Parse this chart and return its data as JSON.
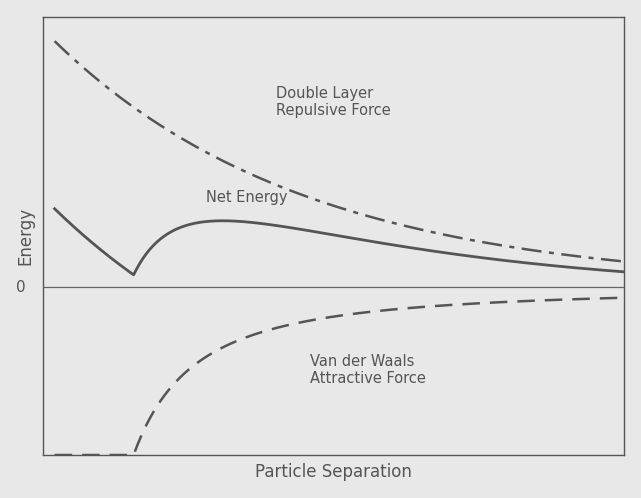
{
  "title": "",
  "xlabel": "Particle Separation",
  "ylabel": "Energy",
  "background_color": "#e8e8e8",
  "line_color": "#555555",
  "zero_line_color": "#666666",
  "xlim": [
    0.0,
    1.0
  ],
  "ylim": [
    -0.65,
    1.05
  ],
  "labels": {
    "double_layer": "Double Layer\nRepulsive Force",
    "net_energy": "Net Energy",
    "van_der_waals": "Van der Waals\nAttractive Force"
  },
  "label_positions": {
    "double_layer": [
      0.4,
      0.72
    ],
    "net_energy": [
      0.28,
      0.35
    ],
    "van_der_waals": [
      0.46,
      -0.32
    ]
  },
  "figsize": [
    6.41,
    4.98
  ],
  "dpi": 100
}
